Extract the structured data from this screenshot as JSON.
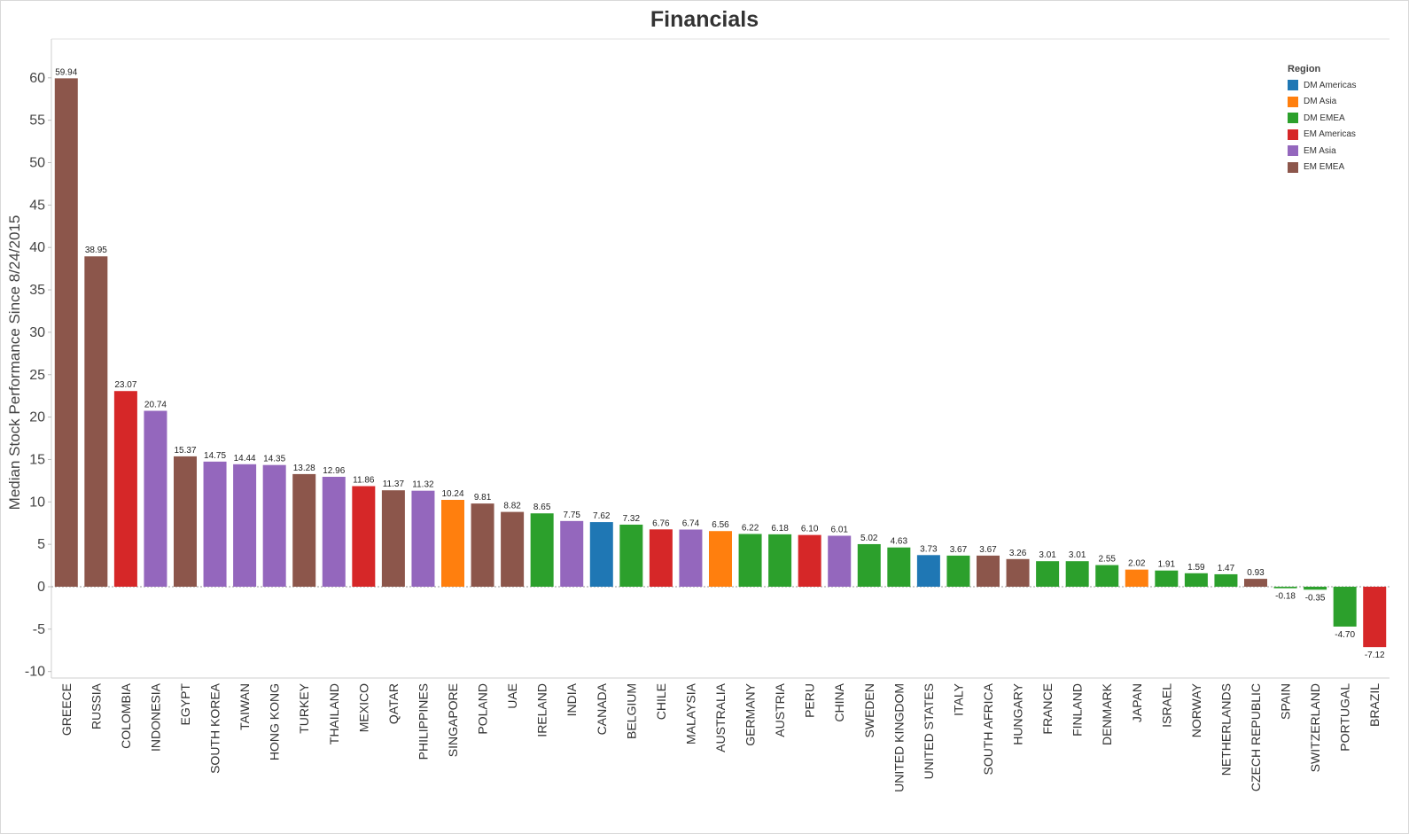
{
  "chart_data": {
    "type": "bar",
    "title": "Financials",
    "xlabel": "",
    "ylabel": "Median Stock Performance Since 8/24/2015",
    "ylim": [
      -12,
      65
    ],
    "yticks": [
      60,
      55,
      50,
      45,
      40,
      35,
      30,
      25,
      20,
      15,
      10,
      5,
      0,
      -5,
      -10
    ],
    "legend_title": "Region",
    "legend_position": "top-right",
    "regions": [
      {
        "name": "DM Americas",
        "color": "#1f77b4"
      },
      {
        "name": "DM Asia",
        "color": "#ff7f0e"
      },
      {
        "name": "DM EMEA",
        "color": "#2ca02c"
      },
      {
        "name": "EM Americas",
        "color": "#d62728"
      },
      {
        "name": "EM Asia",
        "color": "#9467bd"
      },
      {
        "name": "EM EMEA",
        "color": "#8c564b"
      }
    ],
    "categories": [
      "GREECE",
      "RUSSIA",
      "COLOMBIA",
      "INDONESIA",
      "EGYPT",
      "SOUTH KOREA",
      "TAIWAN",
      "HONG KONG",
      "TURKEY",
      "THAILAND",
      "MEXICO",
      "QATAR",
      "PHILIPPINES",
      "SINGAPORE",
      "POLAND",
      "UAE",
      "IRELAND",
      "INDIA",
      "CANADA",
      "BELGIUM",
      "CHILE",
      "MALAYSIA",
      "AUSTRALIA",
      "GERMANY",
      "AUSTRIA",
      "PERU",
      "CHINA",
      "SWEDEN",
      "UNITED KINGDOM",
      "UNITED STATES",
      "ITALY",
      "SOUTH AFRICA",
      "HUNGARY",
      "FRANCE",
      "FINLAND",
      "DENMARK",
      "JAPAN",
      "ISRAEL",
      "NORWAY",
      "NETHERLANDS",
      "CZECH REPUBLIC",
      "SPAIN",
      "SWITZERLAND",
      "PORTUGAL",
      "BRAZIL"
    ],
    "values": [
      59.94,
      38.95,
      23.07,
      20.74,
      15.37,
      14.75,
      14.44,
      14.35,
      13.28,
      12.96,
      11.86,
      11.37,
      11.32,
      10.24,
      9.81,
      8.82,
      8.65,
      7.75,
      7.62,
      7.32,
      6.76,
      6.74,
      6.56,
      6.22,
      6.18,
      6.1,
      6.01,
      5.02,
      4.63,
      3.73,
      3.67,
      3.67,
      3.26,
      3.01,
      3.01,
      2.55,
      2.02,
      1.91,
      1.59,
      1.47,
      0.93,
      -0.18,
      -0.35,
      -4.7,
      -7.12
    ],
    "labels": [
      "59.94",
      "38.95",
      "23.07",
      "20.74",
      "15.37",
      "14.75",
      "14.44",
      "14.35",
      "13.28",
      "12.96",
      "11.86",
      "11.37",
      "11.32",
      "10.24",
      "9.81",
      "8.82",
      "8.65",
      "7.75",
      "7.62",
      "7.32",
      "6.76",
      "6.74",
      "6.56",
      "6.22",
      "6.18",
      "6.10",
      "6.01",
      "5.02",
      "4.63",
      "3.73",
      "3.67",
      "3.67",
      "3.26",
      "3.01",
      "3.01",
      "2.55",
      "2.02",
      "1.91",
      "1.59",
      "1.47",
      "0.93",
      "-0.18",
      "-0.35",
      "-4.70",
      "-7.12"
    ],
    "region": [
      "EM EMEA",
      "EM EMEA",
      "EM Americas",
      "EM Asia",
      "EM EMEA",
      "EM Asia",
      "EM Asia",
      "EM Asia",
      "EM EMEA",
      "EM Asia",
      "EM Americas",
      "EM EMEA",
      "EM Asia",
      "DM Asia",
      "EM EMEA",
      "EM EMEA",
      "DM EMEA",
      "EM Asia",
      "DM Americas",
      "DM EMEA",
      "EM Americas",
      "EM Asia",
      "DM Asia",
      "DM EMEA",
      "DM EMEA",
      "EM Americas",
      "EM Asia",
      "DM EMEA",
      "DM EMEA",
      "DM Americas",
      "DM EMEA",
      "EM EMEA",
      "EM EMEA",
      "DM EMEA",
      "DM EMEA",
      "DM EMEA",
      "DM Asia",
      "DM EMEA",
      "DM EMEA",
      "DM EMEA",
      "EM EMEA",
      "DM EMEA",
      "DM EMEA",
      "DM EMEA",
      "EM Americas"
    ],
    "grid": false
  }
}
